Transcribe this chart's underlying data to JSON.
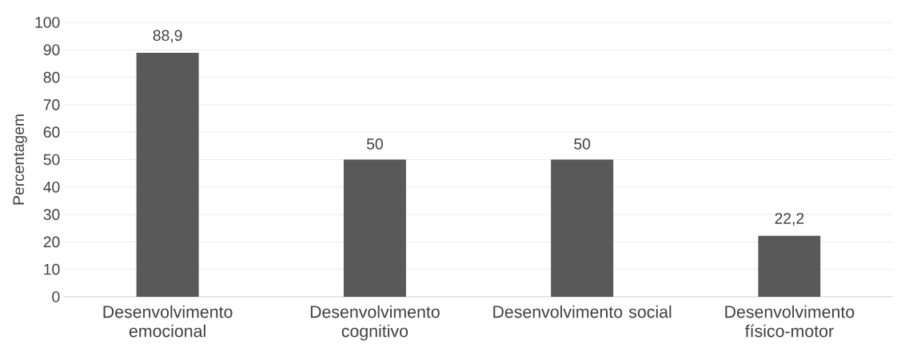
{
  "chart_data": {
    "type": "bar",
    "ylabel": "Percentagem",
    "categories": [
      "Desenvolvimento emocional",
      "Desenvolvimento cognitivo",
      "Desenvolvimento social",
      "Desenvolvimento físico-motor"
    ],
    "values": [
      88.9,
      50,
      50,
      22.2
    ],
    "value_labels": [
      "88,9",
      "50",
      "50",
      "22,2"
    ],
    "color": "#595959",
    "ylim": [
      0,
      100
    ],
    "yticks": [
      0,
      10,
      20,
      30,
      40,
      50,
      60,
      70,
      80,
      90,
      100
    ],
    "grid": "y"
  }
}
